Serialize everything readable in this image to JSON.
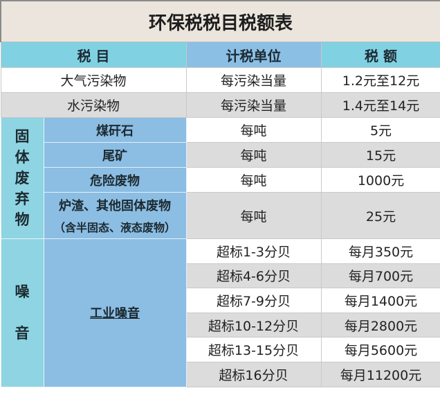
{
  "title": "环保税税目税额表",
  "headers": {
    "item": "税 目",
    "unit": "计税单位",
    "amount": "税 额"
  },
  "rows_general": [
    {
      "item": "大气污染物",
      "unit": "每污染当量",
      "amount": "1.2元至12元"
    },
    {
      "item": "水污染物",
      "unit": "每污染当量",
      "amount": "1.4元至14元"
    }
  ],
  "solid_waste": {
    "category": "固体废弃物",
    "items": [
      {
        "item": "煤矸石",
        "unit": "每吨",
        "amount": "5元"
      },
      {
        "item": "尾矿",
        "unit": "每吨",
        "amount": "15元"
      },
      {
        "item": "危险废物",
        "unit": "每吨",
        "amount": "1000元"
      },
      {
        "item": "炉渣、其他固体废物",
        "note": "（含半固态、液态废物）",
        "unit": "每吨",
        "amount": "25元"
      }
    ]
  },
  "noise": {
    "category": "噪音",
    "item": "工业噪音",
    "levels": [
      {
        "unit": "超标1-3分贝",
        "amount": "每月350元"
      },
      {
        "unit": "超标4-6分贝",
        "amount": "每月700元"
      },
      {
        "unit": "超标7-9分贝",
        "amount": "每月1400元"
      },
      {
        "unit": "超标10-12分贝",
        "amount": "每月2800元"
      },
      {
        "unit": "超标13-15分贝",
        "amount": "每月5600元"
      },
      {
        "unit": "超标16分贝",
        "amount": "每月11200元"
      }
    ]
  },
  "colors": {
    "title_bg": "#ebe5dd",
    "header_cyan": "#80d2e2",
    "header_blue": "#8cbfe4",
    "row_grey": "#dcdcdc"
  }
}
